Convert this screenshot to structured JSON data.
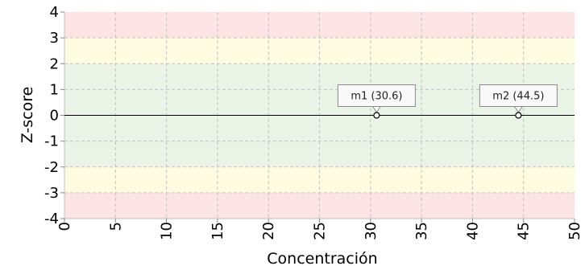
{
  "chart_data": {
    "type": "scatter",
    "xlabel": "Concentración",
    "ylabel": "Z-score",
    "xlim": [
      0,
      50
    ],
    "ylim": [
      -4,
      4
    ],
    "x_ticks": [
      0,
      5,
      10,
      15,
      20,
      25,
      30,
      35,
      40,
      45,
      50
    ],
    "y_ticks": [
      4,
      3,
      2,
      1,
      0,
      -1,
      -2,
      -3,
      -4
    ],
    "grid": true,
    "bands": [
      {
        "from": 3,
        "to": 4,
        "color": "#fde3e3"
      },
      {
        "from": 2,
        "to": 3,
        "color": "#fdfbe0"
      },
      {
        "from": -2,
        "to": 2,
        "color": "#e9f3e6"
      },
      {
        "from": -3,
        "to": -2,
        "color": "#fdfbe0"
      },
      {
        "from": -4,
        "to": -3,
        "color": "#fde3e3"
      }
    ],
    "points": [
      {
        "label": "m1 (30.6)",
        "x": 30.6,
        "y": 0
      },
      {
        "label": "m2 (44.5)",
        "x": 44.5,
        "y": 0
      }
    ]
  }
}
